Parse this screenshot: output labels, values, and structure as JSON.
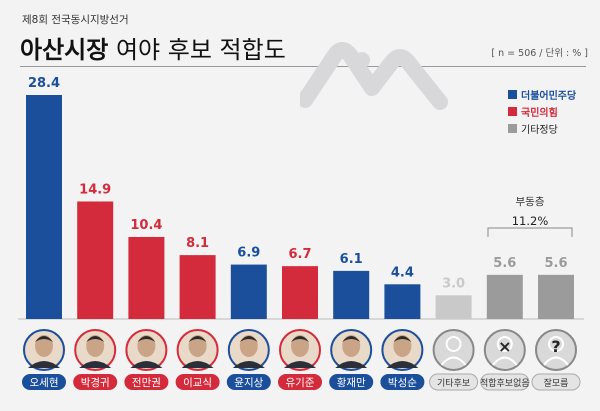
{
  "header": {
    "supertitle": "제8회 전국동시지방선거",
    "title_bold": "아산시장",
    "title_rest": "여야 후보 적합도",
    "note": "[ n = 506 / 단위 : % ]"
  },
  "legend": [
    {
      "label": "더불어민주당",
      "color": "#1b4f9c"
    },
    {
      "label": "국민의힘",
      "color": "#d42b3c"
    },
    {
      "label": "기타정당",
      "color": "#9b9b9b"
    }
  ],
  "undecided": {
    "label": "부동층",
    "value": "11.2%"
  },
  "chart_data": {
    "type": "bar",
    "categories": [
      "오세현",
      "박경귀",
      "전만권",
      "이교식",
      "윤지상",
      "유기준",
      "황재만",
      "박성순",
      "기타후보",
      "적합후보없음",
      "잘모름"
    ],
    "values": [
      28.4,
      14.9,
      10.4,
      8.1,
      6.9,
      6.7,
      6.1,
      4.4,
      3.0,
      5.6,
      5.6
    ],
    "value_labels": [
      "28.4",
      "14.9",
      "10.4",
      "8.1",
      "6.9",
      "6.7",
      "6.1",
      "4.4",
      "3.0",
      "5.6",
      "5.6"
    ],
    "party": [
      "더불어민주당",
      "국민의힘",
      "국민의힘",
      "국민의힘",
      "더불어민주당",
      "국민의힘",
      "더불어민주당",
      "더불어민주당",
      "기타",
      "기타",
      "기타"
    ],
    "colors": [
      "#1b4f9c",
      "#d42b3c",
      "#d42b3c",
      "#d42b3c",
      "#1b4f9c",
      "#d42b3c",
      "#1b4f9c",
      "#1b4f9c",
      "#c9c9c9",
      "#9b9b9b",
      "#9b9b9b"
    ],
    "icons": [
      "photo",
      "photo",
      "photo",
      "photo",
      "photo",
      "photo",
      "photo",
      "photo",
      "person-icon",
      "x-person-icon",
      "question-person-icon"
    ],
    "ylim": [
      0,
      30
    ]
  }
}
